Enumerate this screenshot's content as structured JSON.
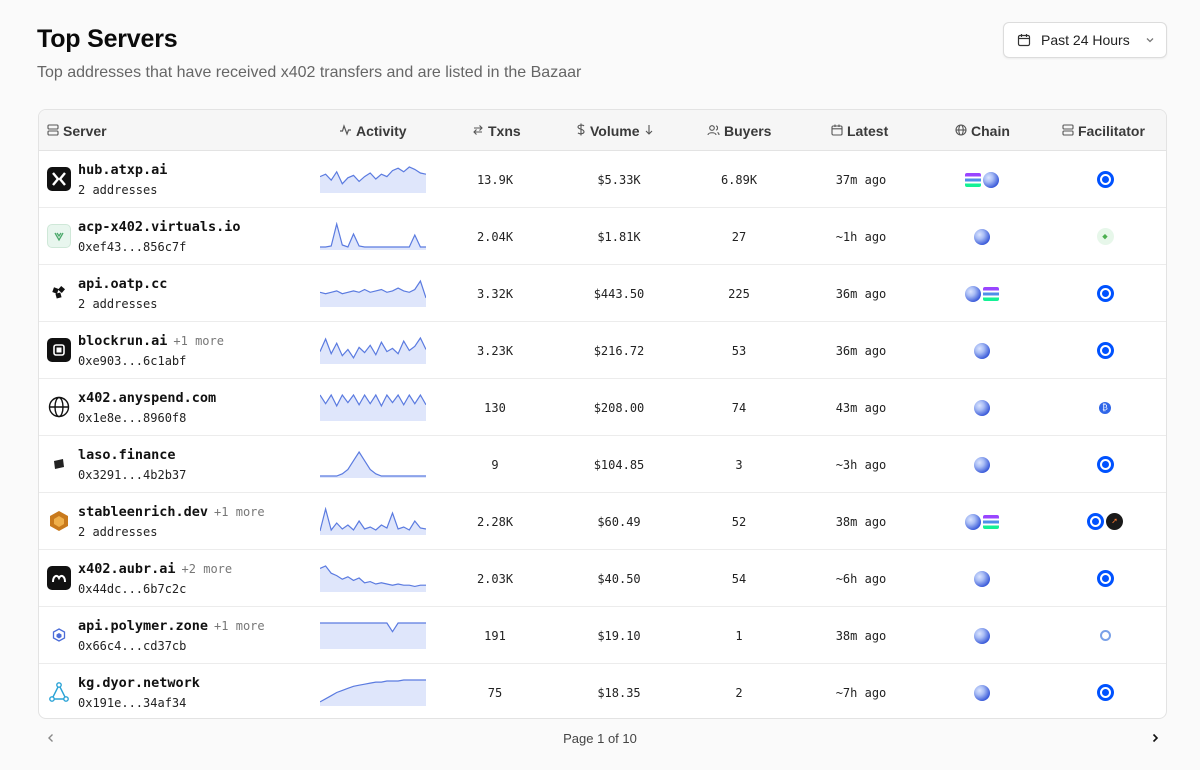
{
  "header": {
    "title": "Top Servers",
    "subtitle": "Top addresses that have received x402 transfers and are listed in the Bazaar",
    "range_label": "Past 24 Hours"
  },
  "columns": {
    "server": "Server",
    "activity": "Activity",
    "txns": "Txns",
    "volume": "Volume",
    "buyers": "Buyers",
    "latest": "Latest",
    "chain": "Chain",
    "facilitator": "Facilitator"
  },
  "rows": [
    {
      "name": "hub.atxp.ai",
      "more": "",
      "sub": "2 addresses",
      "txns": "13.9K",
      "volume": "$5.33K",
      "buyers": "6.89K",
      "latest": "37m ago",
      "chains": [
        "solana",
        "base"
      ],
      "facilitators": [
        "coinbase"
      ],
      "logo": "x-logo-icon",
      "activity": [
        12,
        14,
        9,
        16,
        6,
        11,
        13,
        8,
        12,
        15,
        10,
        14,
        12,
        17,
        19,
        16,
        20,
        18,
        15,
        14
      ]
    },
    {
      "name": "acp-x402.virtuals.io",
      "more": "",
      "sub": "0xef43...856c7f",
      "txns": "2.04K",
      "volume": "$1.81K",
      "buyers": "27",
      "latest": "~1h ago",
      "chains": [
        "base"
      ],
      "facilitators": [
        "virtuals"
      ],
      "logo": "virtuals-logo-icon",
      "activity": [
        1,
        1,
        2,
        24,
        3,
        1,
        14,
        2,
        1,
        1,
        1,
        1,
        1,
        1,
        1,
        1,
        1,
        13,
        1,
        1
      ]
    },
    {
      "name": "api.oatp.cc",
      "more": "",
      "sub": "2 addresses",
      "txns": "3.32K",
      "volume": "$443.50",
      "buyers": "225",
      "latest": "36m ago",
      "chains": [
        "base",
        "solana"
      ],
      "facilitators": [
        "coinbase"
      ],
      "logo": "oatp-logo-icon",
      "activity": [
        9,
        8,
        9,
        10,
        8,
        9,
        10,
        9,
        11,
        9,
        10,
        11,
        9,
        10,
        12,
        10,
        9,
        11,
        17,
        5
      ]
    },
    {
      "name": "blockrun.ai",
      "more": "+1 more",
      "sub": "0xe903...6c1abf",
      "txns": "3.23K",
      "volume": "$216.72",
      "buyers": "53",
      "latest": "36m ago",
      "chains": [
        "base"
      ],
      "facilitators": [
        "coinbase"
      ],
      "logo": "blockrun-logo-icon",
      "activity": [
        10,
        22,
        8,
        18,
        6,
        12,
        4,
        14,
        9,
        16,
        7,
        19,
        10,
        13,
        8,
        20,
        11,
        15,
        23,
        12
      ]
    },
    {
      "name": "x402.anyspend.com",
      "more": "",
      "sub": "0x1e8e...8960f8",
      "txns": "130",
      "volume": "$208.00",
      "buyers": "74",
      "latest": "43m ago",
      "chains": [
        "base"
      ],
      "facilitators": [
        "anyspend"
      ],
      "logo": "globe-logo-icon",
      "activity": [
        22,
        14,
        22,
        12,
        22,
        15,
        22,
        13,
        22,
        14,
        22,
        12,
        22,
        15,
        22,
        13,
        22,
        14,
        22,
        13
      ]
    },
    {
      "name": "laso.finance",
      "more": "",
      "sub": "0x3291...4b2b37",
      "txns": "9",
      "volume": "$104.85",
      "buyers": "3",
      "latest": "~3h ago",
      "chains": [
        "base"
      ],
      "facilitators": [
        "coinbase"
      ],
      "logo": "laso-logo-icon",
      "activity": [
        0,
        0,
        0,
        0,
        1,
        3,
        7,
        11,
        7,
        3,
        1,
        0,
        0,
        0,
        0,
        0,
        0,
        0,
        0,
        0
      ]
    },
    {
      "name": "stableenrich.dev",
      "more": "+1 more",
      "sub": "2 addresses",
      "txns": "2.28K",
      "volume": "$60.49",
      "buyers": "52",
      "latest": "38m ago",
      "chains": [
        "base",
        "solana"
      ],
      "facilitators": [
        "coinbase",
        "dark"
      ],
      "logo": "stableenrich-logo-icon",
      "activity": [
        2,
        24,
        3,
        10,
        4,
        8,
        3,
        12,
        4,
        6,
        3,
        8,
        5,
        20,
        4,
        6,
        3,
        12,
        5,
        4
      ]
    },
    {
      "name": "x402.aubr.ai",
      "more": "+2 more",
      "sub": "0x44dc...6b7c2c",
      "txns": "2.03K",
      "volume": "$40.50",
      "buyers": "54",
      "latest": "~6h ago",
      "chains": [
        "base"
      ],
      "facilitators": [
        "coinbase"
      ],
      "logo": "aubr-logo-icon",
      "activity": [
        18,
        20,
        14,
        12,
        9,
        11,
        8,
        10,
        6,
        7,
        5,
        6,
        5,
        4,
        5,
        4,
        4,
        3,
        4,
        4
      ]
    },
    {
      "name": "api.polymer.zone",
      "more": "+1 more",
      "sub": "0x66c4...cd37cb",
      "txns": "191",
      "volume": "$19.10",
      "buyers": "1",
      "latest": "38m ago",
      "chains": [
        "base"
      ],
      "facilitators": [
        "polymer"
      ],
      "logo": "polymer-logo-icon",
      "activity": [
        22,
        22,
        22,
        22,
        22,
        22,
        22,
        22,
        22,
        22,
        22,
        22,
        22,
        14,
        22,
        22,
        22,
        22,
        22,
        22
      ]
    },
    {
      "name": "kg.dyor.network",
      "more": "",
      "sub": "0x191e...34af34",
      "txns": "75",
      "volume": "$18.35",
      "buyers": "2",
      "latest": "~7h ago",
      "chains": [
        "base"
      ],
      "facilitators": [
        "coinbase"
      ],
      "logo": "dyor-logo-icon",
      "activity": [
        2,
        5,
        8,
        11,
        13,
        15,
        17,
        18,
        19,
        20,
        21,
        21,
        22,
        22,
        22,
        23,
        23,
        23,
        23,
        23
      ]
    }
  ],
  "pager": {
    "text": "Page 1 of 10"
  },
  "colors": {
    "spark": "#5b7be0",
    "spark_fill": "#dfe6fb"
  }
}
